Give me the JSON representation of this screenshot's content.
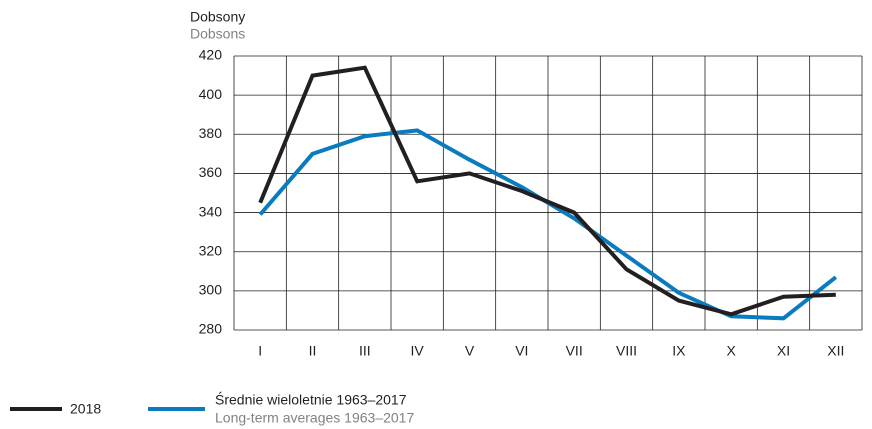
{
  "chart_data": {
    "type": "line",
    "y_label": "Dobsony",
    "y_label_en": "Dobsons",
    "categories": [
      "I",
      "II",
      "III",
      "IV",
      "V",
      "VI",
      "VII",
      "VIII",
      "IX",
      "X",
      "XI",
      "XII"
    ],
    "series": [
      {
        "name": "2018",
        "color": "#231f20",
        "values": [
          345,
          410,
          414,
          356,
          360,
          351,
          340,
          311,
          295,
          288,
          297,
          298
        ]
      },
      {
        "name": "Średnie wieloletnie 1963–2017",
        "name_en": "Long-term averages 1963–2017",
        "color": "#0a7bbf",
        "values": [
          339,
          370,
          379,
          382,
          367,
          353,
          337,
          318,
          299,
          287,
          286,
          307
        ]
      }
    ],
    "ylim": [
      280,
      420
    ],
    "yticks": [
      280,
      300,
      320,
      340,
      360,
      380,
      400,
      420
    ],
    "grid": true
  }
}
